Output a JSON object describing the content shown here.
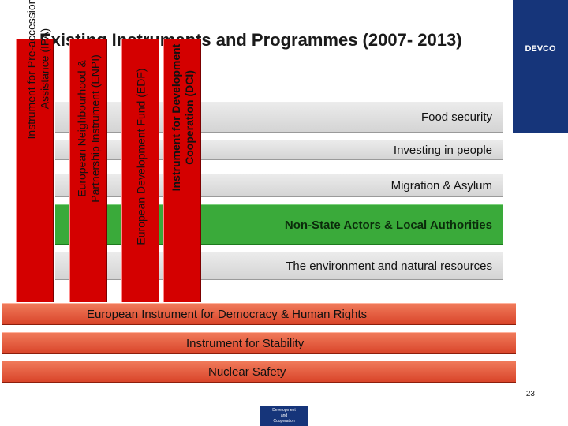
{
  "title": "Existing Instruments and Programmes (2007- 2013)",
  "brand": "DEVCO",
  "programme_bars": [
    {
      "label": "Food security",
      "color": "#d8d8d8"
    },
    {
      "label": "Investing in people",
      "color": "#d8d8d8"
    },
    {
      "label": "Migration & Asylum",
      "color": "#d8d8d8"
    },
    {
      "label": "Non-State Actors & Local Authorities",
      "color": "#3aaa3a"
    },
    {
      "label": "The environment and natural resources",
      "color": "#d8d8d8"
    }
  ],
  "instruments": [
    {
      "label": "Instrument for Pre-accession Assistance (IPA)",
      "color": "#d40000"
    },
    {
      "label": "European Neighbourhood & Partnership Instrument (ENPI)",
      "color": "#d40000"
    },
    {
      "label": "European Development Fund (EDF)",
      "color": "#d40000"
    },
    {
      "label": "Instrument for Development Cooperation (DCI)",
      "color": "#d40000"
    }
  ],
  "bottom_bars": [
    {
      "label": "European Instrument for Democracy & Human Rights",
      "color": "#e5593a"
    },
    {
      "label": "Instrument for Stability",
      "color": "#e5593a"
    },
    {
      "label": "Nuclear Safety",
      "color": "#e5593a"
    }
  ],
  "page_number": "23",
  "footer_logo": {
    "line1": "Development",
    "line2": "and",
    "line3": "Cooperation"
  }
}
